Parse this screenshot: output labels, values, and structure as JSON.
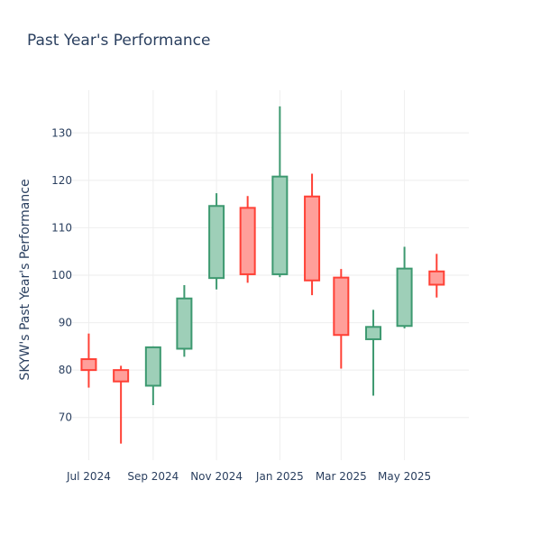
{
  "chart_data": {
    "type": "candlestick",
    "title": "Past Year's Performance",
    "ylabel": "SKYW's Past Year's Performance",
    "xlabel": "",
    "ylim": [
      61,
      139
    ],
    "yticks": [
      70,
      80,
      90,
      100,
      110,
      120,
      130
    ],
    "xrange": [
      "2024-06-15",
      "2025-07-02"
    ],
    "xticks": [
      {
        "date": "2024-07-01",
        "label": "Jul 2024"
      },
      {
        "date": "2024-09-01",
        "label": "Sep 2024"
      },
      {
        "date": "2024-11-01",
        "label": "Nov 2024"
      },
      {
        "date": "2025-01-01",
        "label": "Jan 2025"
      },
      {
        "date": "2025-03-01",
        "label": "Mar 2025"
      },
      {
        "date": "2025-05-01",
        "label": "May 2025"
      }
    ],
    "grid": true,
    "colors": {
      "increasing_line": "#3d9970",
      "increasing_fill": "#9ecfb8",
      "decreasing_line": "#ff4136",
      "decreasing_fill": "#ff9f9a",
      "grid": "#eeeeee",
      "text": "#2a3f5f"
    },
    "candles": [
      {
        "date": "2024-07-01",
        "open": 82.3,
        "high": 87.7,
        "low": 76.3,
        "close": 80.0
      },
      {
        "date": "2024-08-01",
        "open": 80.0,
        "high": 80.9,
        "low": 64.5,
        "close": 77.6
      },
      {
        "date": "2024-09-01",
        "open": 76.7,
        "high": 85.0,
        "low": 72.6,
        "close": 84.8
      },
      {
        "date": "2024-10-01",
        "open": 84.5,
        "high": 97.9,
        "low": 82.8,
        "close": 95.1
      },
      {
        "date": "2024-11-01",
        "open": 99.4,
        "high": 117.3,
        "low": 97.0,
        "close": 114.6
      },
      {
        "date": "2024-12-01",
        "open": 114.2,
        "high": 116.7,
        "low": 98.4,
        "close": 100.2
      },
      {
        "date": "2025-01-01",
        "open": 100.2,
        "high": 135.6,
        "low": 99.6,
        "close": 120.8
      },
      {
        "date": "2025-02-01",
        "open": 116.6,
        "high": 121.4,
        "low": 95.8,
        "close": 98.9
      },
      {
        "date": "2025-03-01",
        "open": 99.5,
        "high": 101.3,
        "low": 80.3,
        "close": 87.4
      },
      {
        "date": "2025-04-01",
        "open": 86.5,
        "high": 92.7,
        "low": 74.6,
        "close": 89.1
      },
      {
        "date": "2025-05-01",
        "open": 89.3,
        "high": 106.0,
        "low": 88.8,
        "close": 101.4
      },
      {
        "date": "2025-06-01",
        "open": 100.8,
        "high": 104.5,
        "low": 95.3,
        "close": 98.0
      }
    ]
  }
}
